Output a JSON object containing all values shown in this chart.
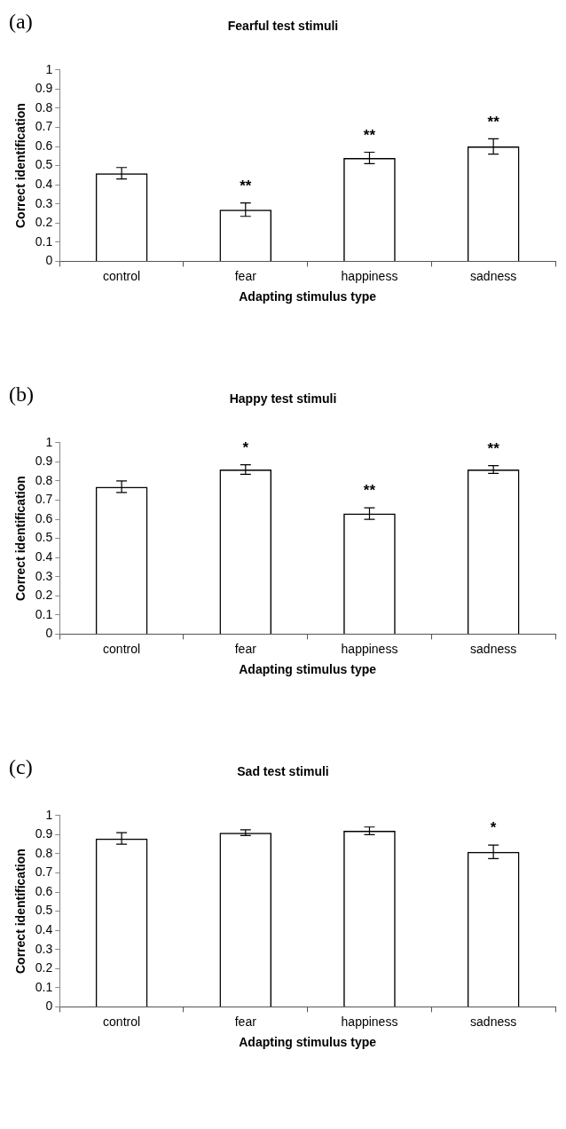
{
  "chart_data": [
    {
      "type": "bar",
      "title": "Fearful test stimuli",
      "xlabel": "Adapting stimulus type",
      "ylabel": "Correct identification",
      "categories": [
        "control",
        "fear",
        "happiness",
        "sadness"
      ],
      "values": [
        0.46,
        0.27,
        0.54,
        0.6
      ],
      "errors": [
        0.03,
        0.035,
        0.03,
        0.04
      ],
      "value_labels": [
        null,
        "**",
        "**",
        "**"
      ],
      "color": "#000000",
      "ylim": [
        0,
        1
      ],
      "yticks": [
        0,
        0.1,
        0.2,
        0.3,
        0.4,
        0.5,
        0.6,
        0.7,
        0.8,
        0.9,
        1
      ],
      "grid": false,
      "legend": false,
      "annotations": [
        "(a)"
      ]
    },
    {
      "type": "bar",
      "title": "Happy test stimuli",
      "xlabel": "Adapting stimulus type",
      "ylabel": "Correct identification",
      "categories": [
        "control",
        "fear",
        "happiness",
        "sadness"
      ],
      "values": [
        0.77,
        0.86,
        0.63,
        0.86
      ],
      "errors": [
        0.03,
        0.025,
        0.03,
        0.02
      ],
      "value_labels": [
        null,
        "*",
        "**",
        "**"
      ],
      "color": "#000000",
      "ylim": [
        0,
        1
      ],
      "yticks": [
        0,
        0.1,
        0.2,
        0.3,
        0.4,
        0.5,
        0.6,
        0.7,
        0.8,
        0.9,
        1
      ],
      "grid": false,
      "legend": false,
      "annotations": [
        "(b)"
      ]
    },
    {
      "type": "bar",
      "title": "Sad test stimuli",
      "xlabel": "Adapting stimulus type",
      "ylabel": "Correct identification",
      "categories": [
        "control",
        "fear",
        "happiness",
        "sadness"
      ],
      "values": [
        0.88,
        0.91,
        0.92,
        0.81
      ],
      "errors": [
        0.03,
        0.015,
        0.02,
        0.035
      ],
      "value_labels": [
        null,
        null,
        null,
        "*"
      ],
      "color": "#000000",
      "ylim": [
        0,
        1
      ],
      "yticks": [
        0,
        0.1,
        0.2,
        0.3,
        0.4,
        0.5,
        0.6,
        0.7,
        0.8,
        0.9,
        1
      ],
      "grid": false,
      "legend": false,
      "annotations": [
        "(c)"
      ]
    }
  ]
}
